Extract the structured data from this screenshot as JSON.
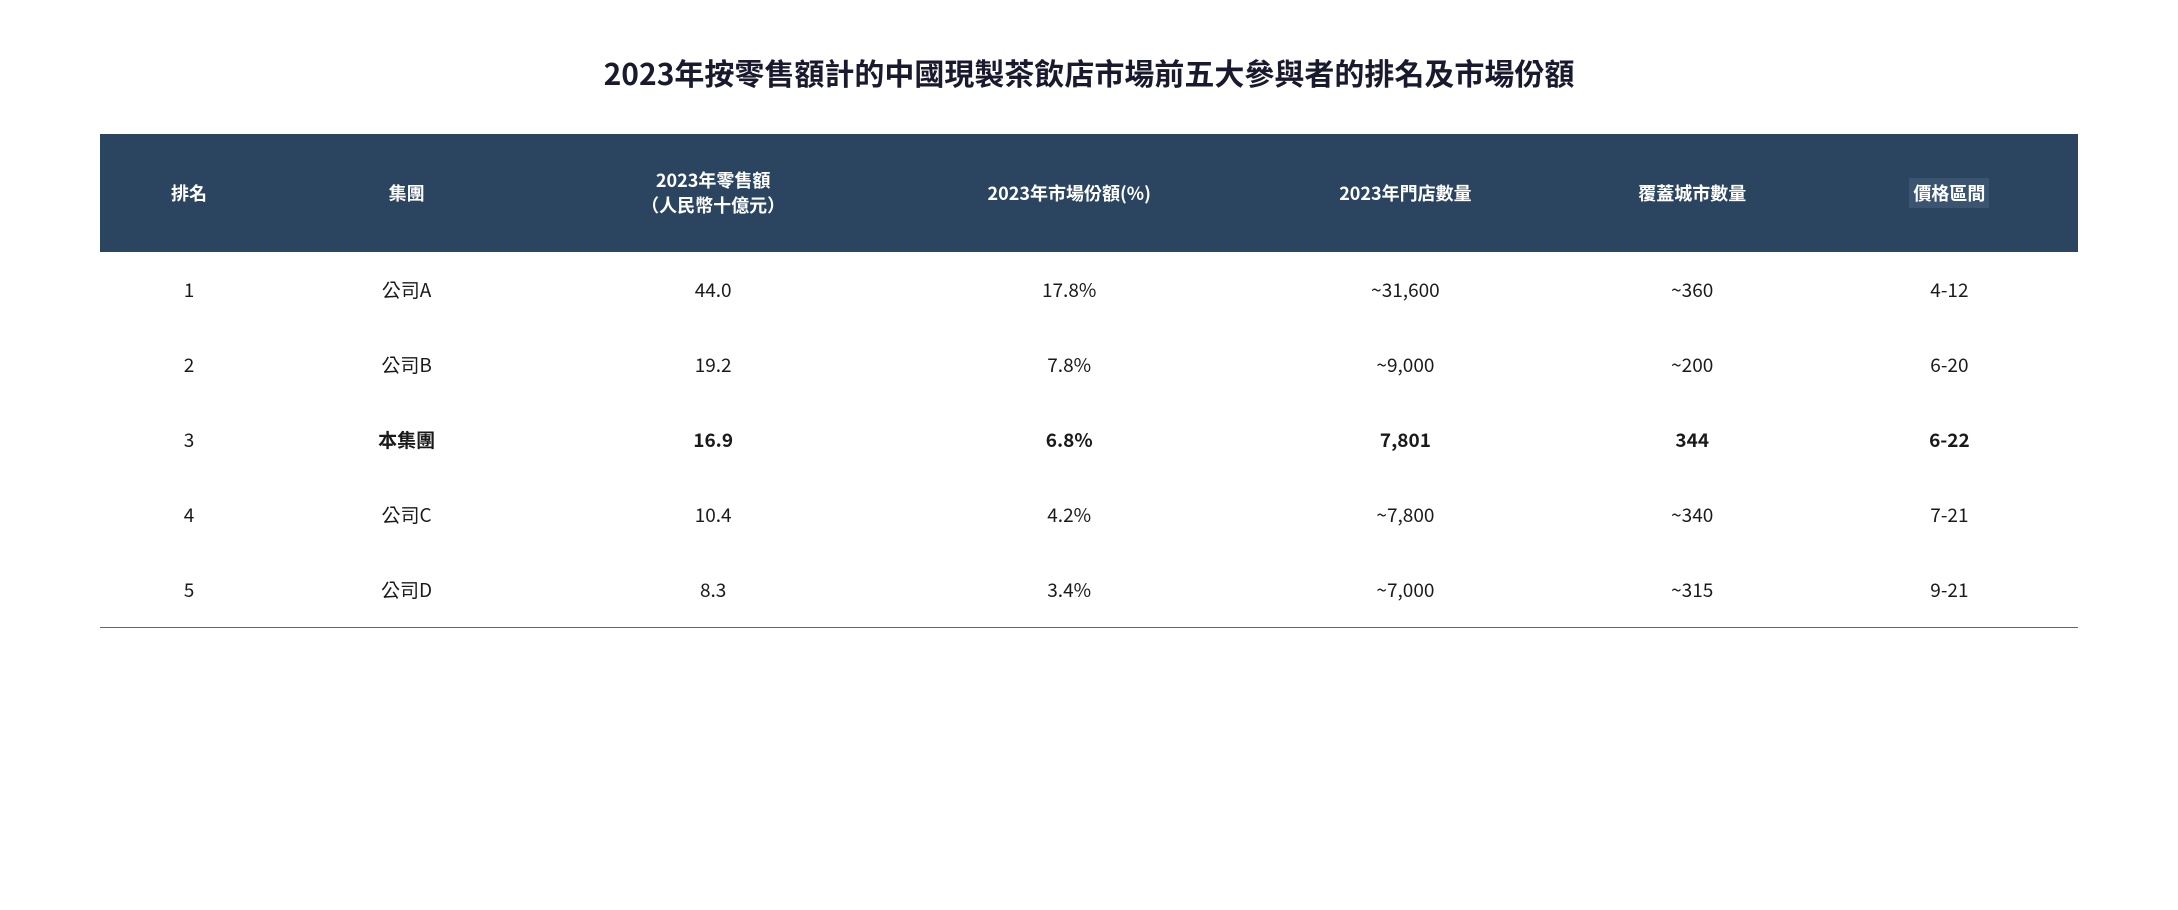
{
  "title": "2023年按零售額計的中國現製茶飲店市場前五大參與者的排名及市場份額",
  "table": {
    "type": "table",
    "header_bg_color": "#2b4560",
    "header_text_color": "#ffffff",
    "body_text_color": "#1a1a1a",
    "title_fontsize": 30,
    "header_fontsize": 18,
    "body_fontsize": 19,
    "bold_row_index": 2,
    "columns": [
      {
        "key": "rank",
        "label": "排名",
        "width": "9%"
      },
      {
        "key": "group",
        "label": "集團",
        "width": "13%"
      },
      {
        "key": "retail",
        "label": "2023年零售額\n（人民幣十億元）",
        "width": "18%"
      },
      {
        "key": "share",
        "label": "2023年市場份額(%)",
        "width": "18%"
      },
      {
        "key": "stores",
        "label": "2023年門店數量",
        "width": "16%"
      },
      {
        "key": "cities",
        "label": "覆蓋城市數量",
        "width": "13%"
      },
      {
        "key": "price",
        "label": "價格區間",
        "width": "13%",
        "highlighted": true
      }
    ],
    "rows": [
      {
        "rank": "1",
        "group": "公司A",
        "retail": "44.0",
        "share": "17.8%",
        "stores": "~31,600",
        "cities": "~360",
        "price": "4-12",
        "bold": false
      },
      {
        "rank": "2",
        "group": "公司B",
        "retail": "19.2",
        "share": "7.8%",
        "stores": "~9,000",
        "cities": "~200",
        "price": "6-20",
        "bold": false
      },
      {
        "rank": "3",
        "group": "本集團",
        "retail": "16.9",
        "share": "6.8%",
        "stores": "7,801",
        "cities": "344",
        "price": "6-22",
        "bold": true
      },
      {
        "rank": "4",
        "group": "公司C",
        "retail": "10.4",
        "share": "4.2%",
        "stores": "~7,800",
        "cities": "~340",
        "price": "7-21",
        "bold": false
      },
      {
        "rank": "5",
        "group": "公司D",
        "retail": "8.3",
        "share": "3.4%",
        "stores": "~7,000",
        "cities": "~315",
        "price": "9-21",
        "bold": false
      }
    ]
  }
}
